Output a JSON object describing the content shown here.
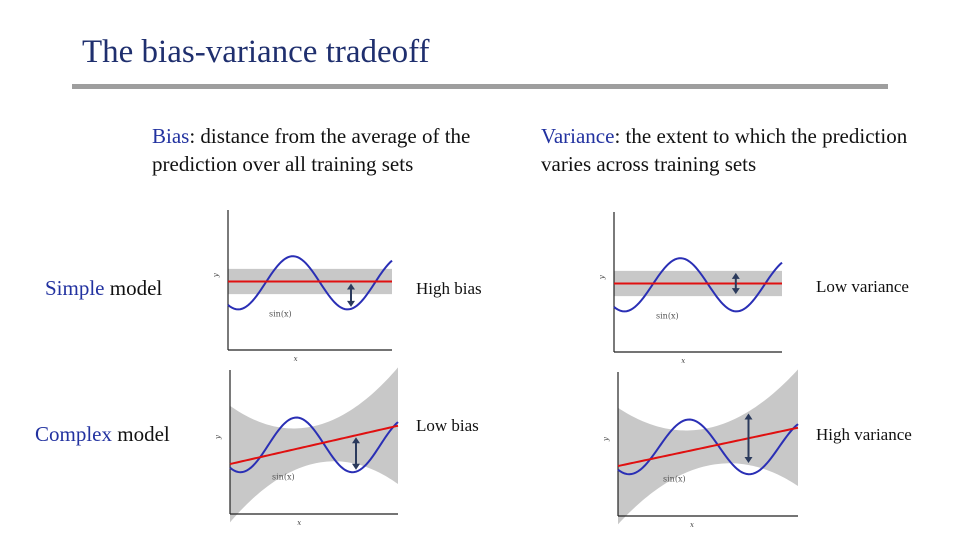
{
  "slide": {
    "title": "The bias-variance tradeoff",
    "bias": {
      "term": "Bias",
      "definition": ": distance from the average of the prediction over all training sets"
    },
    "variance": {
      "term": "Variance",
      "definition": ": the extent to which the prediction varies across training sets"
    },
    "rows": {
      "simple": {
        "term": "Simple",
        "rest": " model"
      },
      "complex": {
        "term": "Complex",
        "rest": " model"
      }
    },
    "tags": {
      "high_bias": "High bias",
      "low_bias": "Low bias",
      "low_variance": "Low variance",
      "high_variance": "High variance"
    }
  },
  "plot_labels": {
    "x": "x",
    "y": "y",
    "sin": "sin(x)"
  },
  "colors": {
    "title": "#1f2f6e",
    "term": "#2232a0",
    "sine": "#2a2fb5",
    "fit": "#e01010",
    "band": "#c8c8c8",
    "arrow": "#2b3a5c"
  }
}
